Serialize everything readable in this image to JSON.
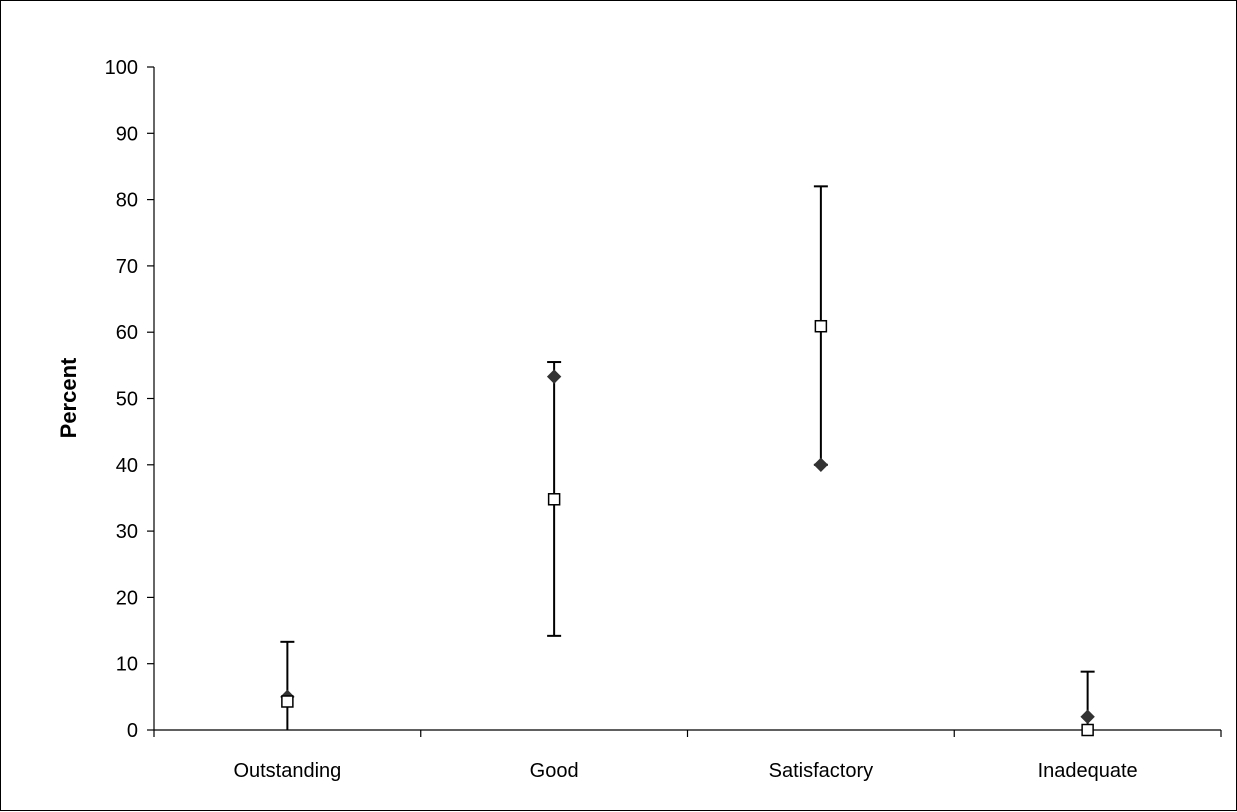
{
  "chart_data": {
    "type": "scatter",
    "title": "",
    "xlabel": "",
    "ylabel": "Percent",
    "ylim": [
      0,
      100
    ],
    "yticks": [
      0,
      10,
      20,
      30,
      40,
      50,
      60,
      70,
      80,
      90,
      100
    ],
    "categories": [
      "Outstanding",
      "Good",
      "Satisfactory",
      "Inadequate"
    ],
    "grid": false,
    "legend": "none",
    "series": [
      {
        "marker": "filled-diamond",
        "color": "#333333",
        "values": [
          5,
          53.3,
          40,
          2
        ]
      },
      {
        "marker": "open-square",
        "color": "#000000",
        "values": [
          4.3,
          34.8,
          60.9,
          0
        ]
      }
    ],
    "ranges": [
      {
        "low": 0,
        "high": 13.3
      },
      {
        "low": 14.2,
        "high": 55.5
      },
      {
        "low": 40,
        "high": 82
      },
      {
        "low": 0,
        "high": 8.8
      }
    ]
  }
}
